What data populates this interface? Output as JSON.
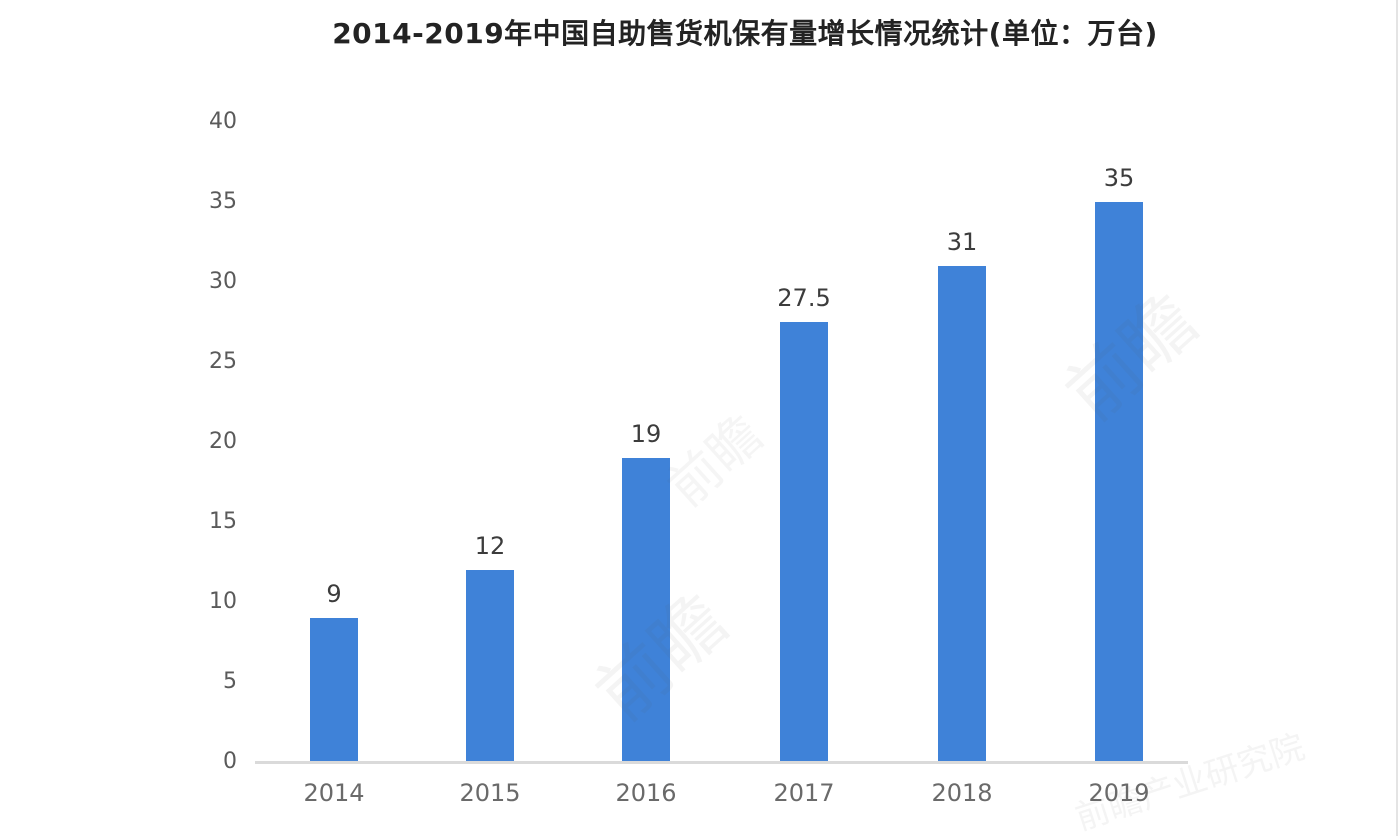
{
  "title": "2014-2019年中国自助售货机保有量增长情况统计(单位：万台)",
  "watermark": {
    "text_short": "前瞻",
    "text_long": "前瞻产业研究院"
  },
  "colors": {
    "bar": "#3f82d8",
    "axis_line": "#dadada",
    "tick_text": "#5a5a5a",
    "value_text": "#3c3c3c",
    "title_text": "#232323"
  },
  "chart_data": {
    "type": "bar",
    "title": "2014-2019年中国自助售货机保有量增长情况统计(单位：万台)",
    "unit": "万台",
    "categories": [
      "2014",
      "2015",
      "2016",
      "2017",
      "2018",
      "2019"
    ],
    "values": [
      9,
      12,
      19,
      27.5,
      31,
      35
    ],
    "value_labels": [
      "9",
      "12",
      "19",
      "27.5",
      "31",
      "35"
    ],
    "xlabel": "",
    "ylabel": "",
    "ylim": [
      0,
      40
    ],
    "yticks": [
      0,
      5,
      10,
      15,
      20,
      25,
      30,
      35,
      40
    ],
    "grid": false,
    "legend": false
  }
}
